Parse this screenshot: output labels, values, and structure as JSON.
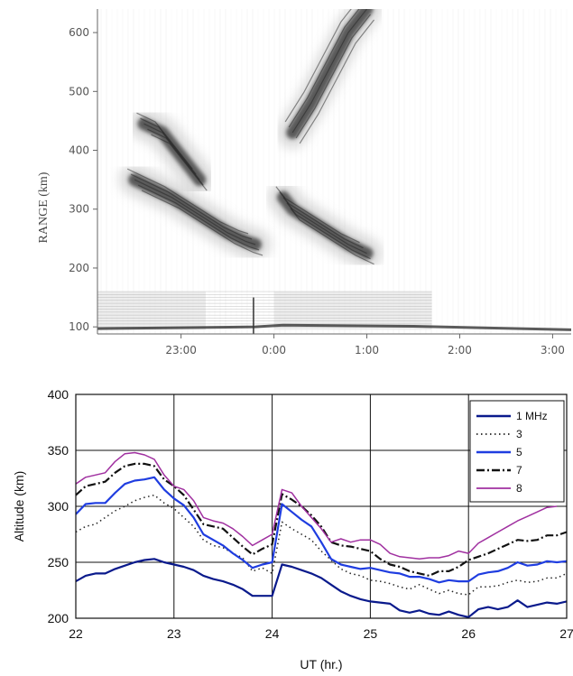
{
  "chart_data": [
    {
      "type": "heatmap",
      "title": "",
      "ylabel": "RANGE  (km)",
      "xlabel": "",
      "ylim": [
        88,
        640
      ],
      "xlim_hours": [
        22.1,
        27.2
      ],
      "yticks": [
        100,
        200,
        300,
        400,
        500,
        600
      ],
      "ytick_labels": [
        "100",
        "200",
        "300",
        "400",
        "500",
        "600"
      ],
      "xticks": [
        23,
        24,
        25,
        26,
        27
      ],
      "xtick_labels": [
        "23:00",
        "0:00",
        "1:00",
        "2:00",
        "3:00"
      ],
      "colormap": "grayscale",
      "traces": [
        {
          "x": [
            22.5,
            22.7,
            22.9,
            23.1,
            23.3,
            23.5,
            23.7,
            23.8
          ],
          "y": [
            350,
            335,
            320,
            300,
            280,
            260,
            245,
            240
          ]
        },
        {
          "x": [
            22.6,
            22.8,
            23.0,
            23.2
          ],
          "y": [
            445,
            430,
            390,
            350
          ]
        },
        {
          "x": [
            24.1,
            24.2,
            24.4,
            24.6,
            24.8,
            25.0
          ],
          "y": [
            320,
            300,
            280,
            260,
            240,
            225
          ]
        },
        {
          "x": [
            24.2,
            24.4,
            24.6,
            24.8,
            25.0
          ],
          "y": [
            430,
            480,
            540,
            600,
            640
          ]
        }
      ]
    },
    {
      "type": "line",
      "title": "",
      "xlabel": "UT (hr.)",
      "ylabel": "Altitude (km)",
      "xlim": [
        22,
        27
      ],
      "ylim": [
        200,
        400
      ],
      "xticks": [
        22,
        23,
        24,
        25,
        26,
        27
      ],
      "yticks": [
        200,
        250,
        300,
        350,
        400
      ],
      "grid": true,
      "legend": "top-right",
      "x": [
        22.0,
        22.1,
        22.2,
        22.3,
        22.4,
        22.5,
        22.6,
        22.7,
        22.8,
        22.9,
        23.0,
        23.1,
        23.2,
        23.3,
        23.4,
        23.5,
        23.6,
        23.7,
        23.8,
        23.9,
        24.0,
        24.1,
        24.2,
        24.3,
        24.4,
        24.5,
        24.6,
        24.7,
        24.8,
        24.9,
        25.0,
        25.1,
        25.2,
        25.3,
        25.4,
        25.5,
        25.6,
        25.7,
        25.8,
        25.9,
        26.0,
        26.1,
        26.2,
        26.3,
        26.4,
        26.5,
        26.6,
        26.7,
        26.8,
        26.9,
        27.0
      ],
      "series": [
        {
          "name": "1 MHz",
          "color": "#0a1a8c",
          "dash": "solid",
          "width": 2.2,
          "values": [
            233,
            238,
            240,
            240,
            244,
            247,
            250,
            252,
            253,
            250,
            248,
            246,
            243,
            238,
            235,
            233,
            230,
            226,
            220,
            220,
            220,
            248,
            246,
            243,
            240,
            236,
            230,
            224,
            220,
            217,
            215,
            214,
            213,
            207,
            205,
            207,
            204,
            203,
            206,
            203,
            201,
            208,
            210,
            208,
            210,
            216,
            210,
            212,
            214,
            213,
            215
          ]
        },
        {
          "name": "3",
          "color": "#222222",
          "dash": "1.5 3.5",
          "width": 1.5,
          "values": [
            277,
            282,
            284,
            290,
            296,
            300,
            305,
            308,
            310,
            303,
            298,
            290,
            282,
            270,
            265,
            263,
            258,
            254,
            242,
            245,
            240,
            286,
            280,
            275,
            270,
            260,
            252,
            244,
            240,
            238,
            234,
            233,
            231,
            228,
            226,
            230,
            226,
            222,
            225,
            222,
            221,
            228,
            228,
            229,
            232,
            234,
            232,
            233,
            236,
            236,
            240
          ]
        },
        {
          "name": "5",
          "color": "#1f3de0",
          "dash": "solid",
          "width": 2.2,
          "values": [
            293,
            302,
            303,
            303,
            312,
            320,
            323,
            324,
            326,
            315,
            307,
            301,
            290,
            275,
            270,
            265,
            258,
            252,
            245,
            248,
            250,
            302,
            295,
            288,
            282,
            268,
            253,
            248,
            246,
            244,
            245,
            243,
            241,
            240,
            237,
            237,
            235,
            232,
            234,
            233,
            233,
            239,
            241,
            242,
            245,
            250,
            247,
            248,
            251,
            250,
            251
          ]
        },
        {
          "name": "7",
          "color": "#111111",
          "dash": "9 3 2 3",
          "width": 2.2,
          "values": [
            310,
            318,
            320,
            322,
            330,
            336,
            338,
            338,
            336,
            324,
            318,
            310,
            297,
            284,
            282,
            280,
            272,
            264,
            257,
            262,
            266,
            311,
            306,
            300,
            292,
            282,
            268,
            265,
            264,
            262,
            260,
            253,
            248,
            246,
            242,
            240,
            238,
            242,
            242,
            246,
            252,
            255,
            258,
            262,
            266,
            270,
            269,
            270,
            274,
            274,
            277
          ]
        },
        {
          "name": "8",
          "color": "#a030a0",
          "dash": "solid",
          "width": 1.5,
          "values": [
            320,
            326,
            328,
            330,
            340,
            347,
            348,
            346,
            342,
            328,
            318,
            315,
            305,
            290,
            287,
            285,
            280,
            273,
            265,
            270,
            275,
            315,
            312,
            300,
            290,
            280,
            268,
            271,
            268,
            270,
            270,
            266,
            258,
            255,
            254,
            253,
            254,
            254,
            256,
            260,
            258,
            267,
            272,
            277,
            282,
            287,
            291,
            295,
            299,
            300,
            null
          ]
        }
      ]
    }
  ]
}
